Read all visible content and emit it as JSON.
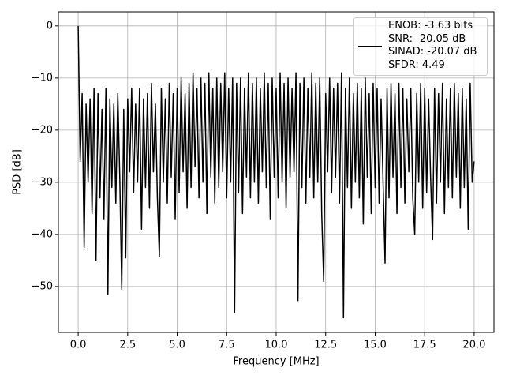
{
  "chart_data": {
    "type": "line",
    "xlabel": "Frequency [MHz]",
    "ylabel": "PSD [dB]",
    "xlim": [
      -1.0,
      21.0
    ],
    "ylim": [
      -58.8,
      2.7
    ],
    "xticks": [
      {
        "value": 0,
        "label": "0.0"
      },
      2.5,
      {
        "value": 5,
        "label": "5.0"
      },
      7.5,
      {
        "value": 10,
        "label": "10.0"
      },
      12.5,
      {
        "value": 15,
        "label": "15.0"
      },
      17.5,
      {
        "value": 20,
        "label": "20.0"
      }
    ],
    "yticks": [
      {
        "value": -50,
        "label": "−50"
      },
      {
        "value": -40,
        "label": "−40"
      },
      {
        "value": -30,
        "label": "−30"
      },
      {
        "value": -20,
        "label": "−20"
      },
      {
        "value": -10,
        "label": "−10"
      },
      0
    ],
    "grid": true,
    "legend": "upper right",
    "x": [
      0.0,
      0.1,
      0.2,
      0.3,
      0.4,
      0.5,
      0.6,
      0.7,
      0.8,
      0.9,
      1.0,
      1.1,
      1.2,
      1.3,
      1.4,
      1.5,
      1.6,
      1.7,
      1.8,
      1.9,
      2.0,
      2.1,
      2.2,
      2.3,
      2.4,
      2.5,
      2.6,
      2.7,
      2.8,
      2.9,
      3.0,
      3.1,
      3.2,
      3.3,
      3.4,
      3.5,
      3.6,
      3.7,
      3.8,
      3.9,
      4.0,
      4.1,
      4.2,
      4.3,
      4.4,
      4.5,
      4.6,
      4.7,
      4.8,
      4.9,
      5.0,
      5.1,
      5.2,
      5.3,
      5.4,
      5.5,
      5.6,
      5.7,
      5.8,
      5.9,
      6.0,
      6.1,
      6.2,
      6.3,
      6.4,
      6.5,
      6.6,
      6.7,
      6.8,
      6.9,
      7.0,
      7.1,
      7.2,
      7.3,
      7.4,
      7.5,
      7.6,
      7.7,
      7.8,
      7.9,
      8.0,
      8.1,
      8.2,
      8.3,
      8.4,
      8.5,
      8.6,
      8.7,
      8.8,
      8.9,
      9.0,
      9.1,
      9.2,
      9.3,
      9.4,
      9.5,
      9.6,
      9.7,
      9.8,
      9.9,
      10.0,
      10.1,
      10.2,
      10.3,
      10.4,
      10.5,
      10.6,
      10.7,
      10.8,
      10.9,
      11.0,
      11.1,
      11.2,
      11.3,
      11.4,
      11.5,
      11.6,
      11.7,
      11.8,
      11.9,
      12.0,
      12.1,
      12.2,
      12.3,
      12.4,
      12.5,
      12.6,
      12.7,
      12.8,
      12.9,
      13.0,
      13.1,
      13.2,
      13.3,
      13.4,
      13.5,
      13.6,
      13.7,
      13.8,
      13.9,
      14.0,
      14.1,
      14.2,
      14.3,
      14.4,
      14.5,
      14.6,
      14.7,
      14.8,
      14.9,
      15.0,
      15.1,
      15.2,
      15.3,
      15.4,
      15.5,
      15.6,
      15.7,
      15.8,
      15.9,
      16.0,
      16.1,
      16.2,
      16.3,
      16.4,
      16.5,
      16.6,
      16.7,
      16.8,
      16.9,
      17.0,
      17.1,
      17.2,
      17.3,
      17.4,
      17.5,
      17.6,
      17.7,
      17.8,
      17.9,
      18.0,
      18.1,
      18.2,
      18.3,
      18.4,
      18.5,
      18.6,
      18.7,
      18.8,
      18.9,
      19.0,
      19.1,
      19.2,
      19.3,
      19.4,
      19.5,
      19.6,
      19.7,
      19.8,
      19.9,
      20.0
    ],
    "series": [
      {
        "name": "ENOB: -3.63 bits\nSNR: -20.05 dB\nSINAD: -20.07 dB\nSFDR: 4.49",
        "color": "#000000",
        "values": [
          0,
          -26,
          -13,
          -42.5,
          -15,
          -30,
          -14,
          -36,
          -12,
          -45,
          -13,
          -33,
          -16,
          -37,
          -12,
          -51.5,
          -14,
          -31,
          -15,
          -34,
          -13,
          -29,
          -50.5,
          -16,
          -44.5,
          -14,
          -28,
          -12,
          -32,
          -15,
          -30,
          -12,
          -39,
          -14,
          -31,
          -13,
          -35,
          -11,
          -28,
          -15,
          -33,
          -44.3,
          -12,
          -30,
          -14,
          -34,
          -11,
          -29,
          -13,
          -37,
          -12,
          -32,
          -10,
          -28,
          -13,
          -35,
          -11,
          -31,
          -9,
          -27,
          -12,
          -33,
          -10,
          -30,
          -11,
          -36,
          -9,
          -29,
          -12,
          -34,
          -10,
          -31,
          -11,
          -28,
          -9,
          -33,
          -12,
          -30,
          -10,
          -55,
          -11,
          -32,
          -10,
          -36,
          -12,
          -29,
          -9,
          -33,
          -11,
          -30,
          -10,
          -34,
          -12,
          -28,
          -9,
          -31,
          -11,
          -37,
          -10,
          -29,
          -12,
          -33,
          -9,
          -30,
          -11,
          -35,
          -10,
          -29,
          -12,
          -28,
          -9,
          -52.7,
          -11,
          -31,
          -10,
          -34,
          -12,
          -29,
          -9,
          -33,
          -11,
          -30,
          -10,
          -36,
          -49,
          -13,
          -28,
          -10,
          -32,
          -12,
          -29,
          -11,
          -34,
          -9,
          -56,
          -12,
          -31,
          -10,
          -35,
          -13,
          -30,
          -11,
          -33,
          -12,
          -38,
          -10,
          -29,
          -13,
          -36,
          -11,
          -31,
          -12,
          -34,
          -14,
          -30,
          -45.5,
          -12,
          -33,
          -11,
          -29,
          -13,
          -36,
          -11,
          -31,
          -12,
          -34,
          -14,
          -28,
          -12,
          -33,
          -40,
          -13,
          -30,
          -11,
          -35,
          -12,
          -32,
          -14,
          -29,
          -41,
          -12,
          -34,
          -13,
          -30,
          -11,
          -36,
          -14,
          -31,
          -12,
          -33,
          -11,
          -29,
          -13,
          -35,
          -12,
          -31,
          -14,
          -39,
          -11,
          -30,
          -26
        ]
      }
    ]
  }
}
